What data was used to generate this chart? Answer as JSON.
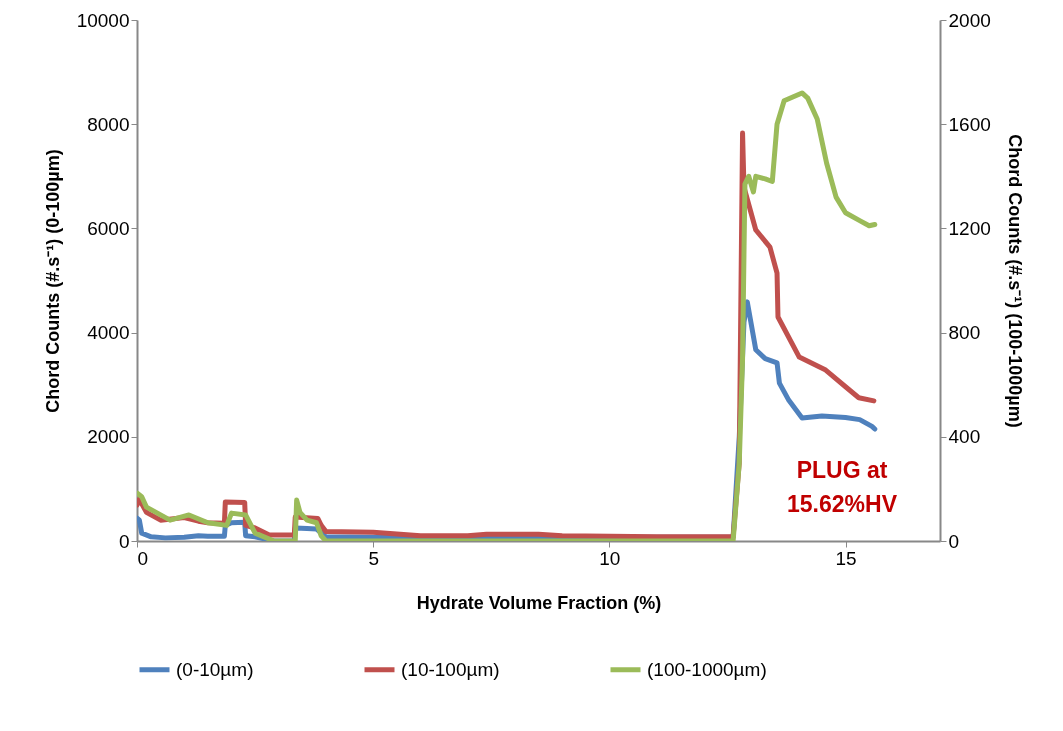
{
  "chart_data": {
    "type": "line",
    "xlabel": "Hydrate Volume Fraction (%)",
    "ylabel": "Chord Counts (#.s⁻¹) (0-100µm)",
    "y2label": "Chord Counts (#.s⁻¹) (100-1000µm)",
    "xlim": [
      0,
      17
    ],
    "xticks": [
      0,
      5,
      10,
      15
    ],
    "ylim": [
      0,
      10000
    ],
    "yticks": [
      0,
      2000,
      4000,
      6000,
      8000,
      10000
    ],
    "y2lim": [
      0,
      2000
    ],
    "y2ticks": [
      0,
      400,
      800,
      1200,
      1600,
      2000
    ],
    "grid": false,
    "legend": "bottom",
    "line_style": "solid",
    "marker": "none",
    "annotations": [
      "PLUG at\n15.62%HV"
    ],
    "series": [
      {
        "name": "(0-10µm)",
        "color": "#4f81bd",
        "x": [
          0,
          0.05,
          0.1,
          0.3,
          0.6,
          1.0,
          1.3,
          1.5,
          1.85,
          1.87,
          2.0,
          2.28,
          2.3,
          2.5,
          2.9,
          3.33,
          3.35,
          3.6,
          3.8,
          4.0,
          5,
          6,
          7,
          8,
          9,
          10,
          11,
          12,
          12.62,
          12.75,
          12.85,
          12.92,
          13.1,
          13.3,
          13.55,
          13.6,
          13.8,
          14.08,
          14.5,
          15.0,
          15.3,
          15.56,
          15.62
        ],
        "values": [
          440,
          400,
          150,
          80,
          60,
          70,
          100,
          90,
          90,
          300,
          350,
          360,
          100,
          80,
          0,
          0,
          250,
          240,
          230,
          80,
          70,
          60,
          70,
          80,
          80,
          70,
          70,
          70,
          70,
          2000,
          4200,
          4590,
          3670,
          3500,
          3420,
          3030,
          2700,
          2360,
          2400,
          2370,
          2330,
          2200,
          2150
        ]
      },
      {
        "name": "(10-100µm)",
        "color": "#c0504d",
        "x": [
          0,
          0.05,
          0.2,
          0.5,
          1.0,
          1.3,
          1.5,
          1.85,
          1.87,
          2.28,
          2.3,
          2.5,
          2.8,
          3.33,
          3.35,
          3.83,
          3.9,
          4.0,
          5,
          6,
          7,
          7.4,
          8.5,
          9,
          10,
          11,
          12,
          12.62,
          12.75,
          12.82,
          12.85,
          13.1,
          13.4,
          13.55,
          13.57,
          14.02,
          14.58,
          15.0,
          15.28,
          15.6
        ],
        "values": [
          690,
          800,
          550,
          400,
          450,
          380,
          350,
          340,
          750,
          740,
          300,
          250,
          115,
          115,
          460,
          430,
          300,
          180,
          170,
          100,
          100,
          130,
          130,
          100,
          90,
          80,
          80,
          80,
          1500,
          7830,
          6790,
          5970,
          5640,
          5140,
          4300,
          3530,
          3280,
          2960,
          2750,
          2690
        ]
      },
      {
        "name": "(100-1000µm)",
        "color": "#9bbb59",
        "axis": "y2",
        "x": [
          0,
          0.1,
          0.2,
          0.7,
          1.1,
          1.5,
          1.9,
          2.0,
          2.3,
          2.5,
          2.9,
          3.35,
          3.38,
          3.45,
          3.6,
          3.8,
          3.9,
          4.0,
          6,
          8,
          10,
          12,
          12.62,
          12.75,
          12.82,
          12.87,
          12.95,
          13.05,
          13.1,
          13.3,
          13.45,
          13.55,
          13.7,
          14.08,
          14.2,
          14.4,
          14.6,
          14.8,
          15.0,
          15.3,
          15.5,
          15.62
        ],
        "values": [
          184,
          170,
          130,
          80,
          100,
          70,
          60,
          107,
          100,
          30,
          0,
          0,
          157,
          110,
          80,
          70,
          20,
          0,
          0,
          0,
          0,
          0,
          0,
          300,
          700,
          1370,
          1400,
          1340,
          1400,
          1390,
          1380,
          1600,
          1690,
          1720,
          1700,
          1620,
          1450,
          1320,
          1260,
          1230,
          1210,
          1215
        ]
      }
    ]
  }
}
